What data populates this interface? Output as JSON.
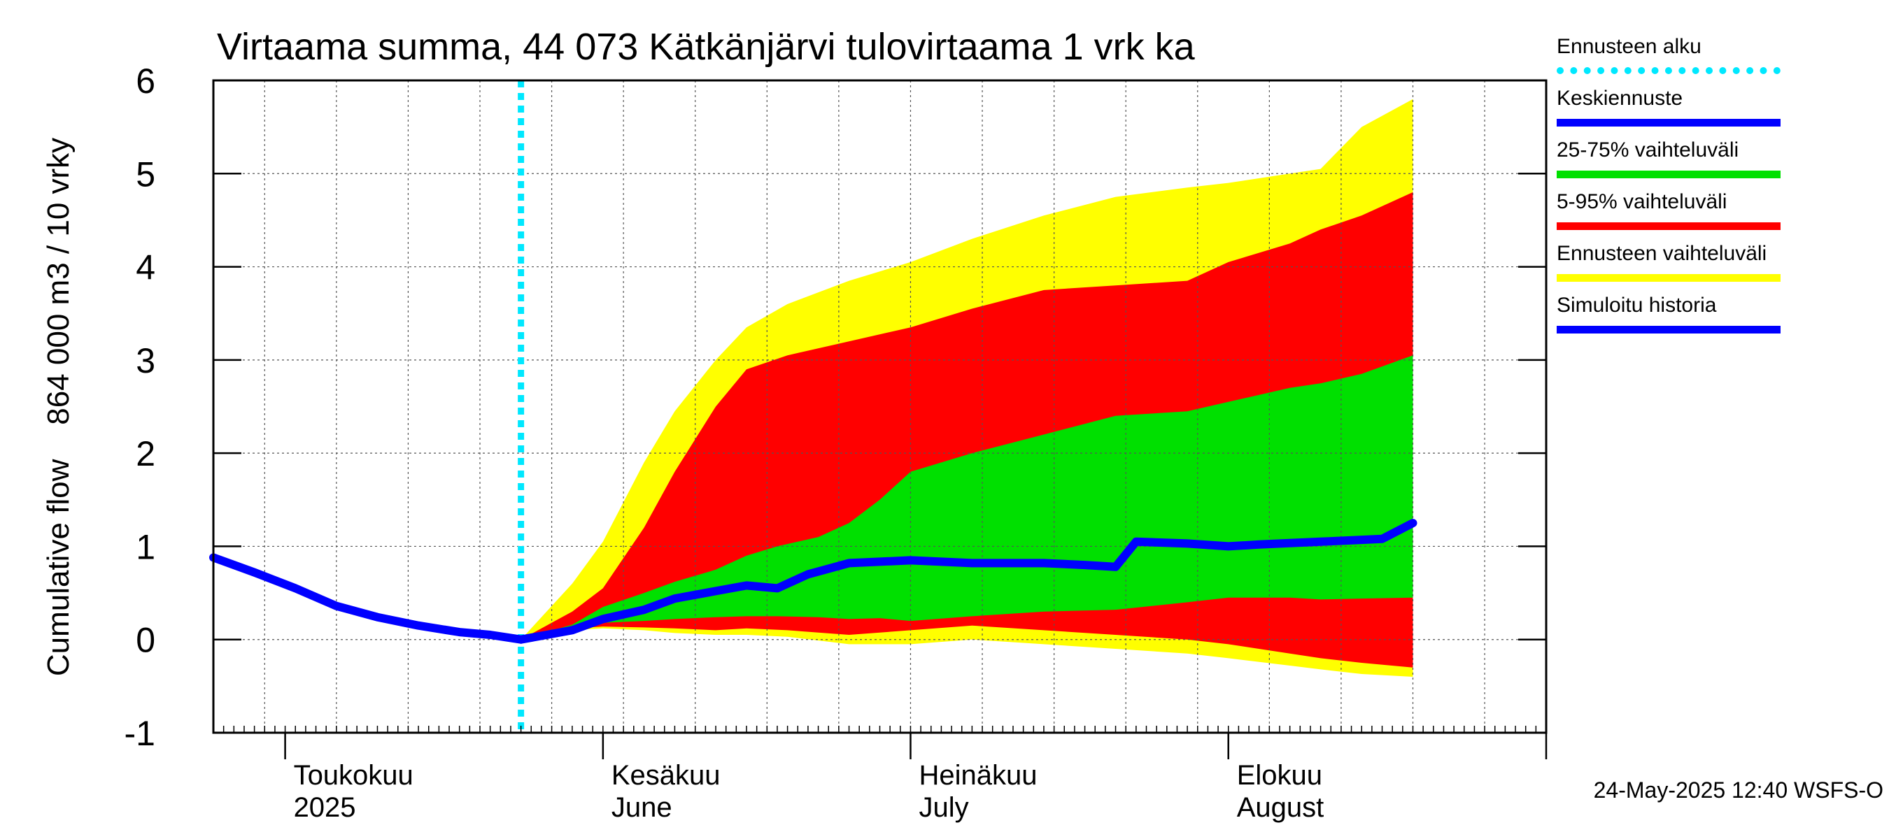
{
  "chart_data": {
    "type": "area",
    "title": "Virtaama summa, 44 073 Kätkänjärvi tulovirtaama 1 vrk ka",
    "ylabel_lines": [
      "Cumulative flow",
      "864 000 m3 / 10 vrky"
    ],
    "ylim": [
      -1,
      6
    ],
    "yticks": [
      "-1",
      "0",
      "1",
      "2",
      "3",
      "4",
      "5",
      "6"
    ],
    "xlim": [
      "2025-04-24",
      "2025-09-01"
    ],
    "month_labels": [
      {
        "date": "2025-05-01",
        "line1": "Toukokuu",
        "line2": "2025"
      },
      {
        "date": "2025-06-01",
        "line1": "Kesäkuu",
        "line2": "June"
      },
      {
        "date": "2025-07-01",
        "line1": "Heinäkuu",
        "line2": "July"
      },
      {
        "date": "2025-08-01",
        "line1": "Elokuu",
        "line2": "August"
      }
    ],
    "forecast_start": "2025-05-24",
    "grid": true,
    "legend_position": "right",
    "legend": [
      {
        "name": "Ennusteen alku",
        "color": "#00e8ff",
        "style": "dotted"
      },
      {
        "name": "Keskiennuste",
        "color": "#0000ff"
      },
      {
        "name": "25-75% vaihteluväli",
        "color": "#00e000"
      },
      {
        "name": "5-95% vaihteluväli",
        "color": "#ff0000"
      },
      {
        "name": "Ennusteen vaihteluväli",
        "color": "#ffff00"
      },
      {
        "name": "Simuloitu historia",
        "color": "#0000ff"
      }
    ],
    "history": {
      "x": [
        "2025-04-24",
        "2025-04-28",
        "2025-05-02",
        "2025-05-06",
        "2025-05-10",
        "2025-05-14",
        "2025-05-18",
        "2025-05-21",
        "2025-05-24"
      ],
      "y": [
        0.88,
        0.72,
        0.55,
        0.36,
        0.24,
        0.15,
        0.08,
        0.05,
        0.0
      ]
    },
    "median": {
      "x": [
        "2025-05-24",
        "2025-05-29",
        "2025-06-01",
        "2025-06-05",
        "2025-06-08",
        "2025-06-12",
        "2025-06-15",
        "2025-06-18",
        "2025-06-21",
        "2025-06-25",
        "2025-07-01",
        "2025-07-07",
        "2025-07-14",
        "2025-07-18",
        "2025-07-21",
        "2025-07-23",
        "2025-07-28",
        "2025-08-01",
        "2025-08-04",
        "2025-08-10",
        "2025-08-14",
        "2025-08-16",
        "2025-08-19"
      ],
      "y": [
        0.0,
        0.1,
        0.22,
        0.32,
        0.44,
        0.52,
        0.58,
        0.55,
        0.7,
        0.82,
        0.85,
        0.82,
        0.82,
        0.8,
        0.78,
        1.05,
        1.03,
        1.0,
        1.02,
        1.05,
        1.07,
        1.08,
        1.25
      ]
    },
    "band_5_95_outer": {
      "x": [
        "2025-05-24",
        "2025-05-29",
        "2025-06-01",
        "2025-06-05",
        "2025-06-08",
        "2025-06-12",
        "2025-06-15",
        "2025-06-19",
        "2025-06-25",
        "2025-07-01",
        "2025-07-07",
        "2025-07-14",
        "2025-07-21",
        "2025-07-28",
        "2025-08-01",
        "2025-08-07",
        "2025-08-10",
        "2025-08-14",
        "2025-08-19"
      ],
      "upper": [
        0.0,
        0.6,
        1.05,
        1.9,
        2.45,
        3.0,
        3.35,
        3.6,
        3.85,
        4.05,
        4.3,
        4.55,
        4.75,
        4.85,
        4.9,
        5.0,
        5.05,
        5.5,
        5.8
      ],
      "lower": [
        0.0,
        0.1,
        0.12,
        0.1,
        0.07,
        0.05,
        0.05,
        0.03,
        -0.05,
        -0.05,
        0.0,
        -0.05,
        -0.1,
        -0.15,
        -0.2,
        -0.28,
        -0.32,
        -0.37,
        -0.4
      ]
    },
    "band_25_75_outer": {
      "x": [
        "2025-05-24",
        "2025-05-29",
        "2025-06-01",
        "2025-06-05",
        "2025-06-08",
        "2025-06-12",
        "2025-06-15",
        "2025-06-19",
        "2025-06-25",
        "2025-07-01",
        "2025-07-07",
        "2025-07-14",
        "2025-07-21",
        "2025-07-28",
        "2025-08-01",
        "2025-08-07",
        "2025-08-10",
        "2025-08-14",
        "2025-08-19"
      ],
      "upper": [
        0.0,
        0.3,
        0.55,
        1.2,
        1.8,
        2.5,
        2.9,
        3.05,
        3.2,
        3.35,
        3.55,
        3.75,
        3.8,
        3.85,
        4.05,
        4.25,
        4.4,
        4.55,
        4.8
      ],
      "lower": [
        0.0,
        0.12,
        0.14,
        0.13,
        0.12,
        0.1,
        0.12,
        0.1,
        0.05,
        0.1,
        0.15,
        0.1,
        0.05,
        0.0,
        -0.05,
        -0.15,
        -0.2,
        -0.25,
        -0.3
      ]
    },
    "band_25_75": {
      "x": [
        "2025-05-24",
        "2025-05-29",
        "2025-06-01",
        "2025-06-05",
        "2025-06-08",
        "2025-06-12",
        "2025-06-15",
        "2025-06-18",
        "2025-06-22",
        "2025-06-25",
        "2025-06-28",
        "2025-07-01",
        "2025-07-07",
        "2025-07-14",
        "2025-07-21",
        "2025-07-28",
        "2025-08-01",
        "2025-08-07",
        "2025-08-10",
        "2025-08-14",
        "2025-08-19"
      ],
      "upper": [
        0.0,
        0.16,
        0.35,
        0.5,
        0.62,
        0.75,
        0.9,
        1.0,
        1.1,
        1.25,
        1.5,
        1.8,
        2.0,
        2.2,
        2.4,
        2.45,
        2.55,
        2.7,
        2.75,
        2.85,
        3.05
      ],
      "lower": [
        0.0,
        0.15,
        0.18,
        0.2,
        0.22,
        0.24,
        0.25,
        0.25,
        0.24,
        0.22,
        0.23,
        0.2,
        0.25,
        0.3,
        0.32,
        0.4,
        0.45,
        0.45,
        0.43,
        0.44,
        0.45
      ]
    }
  },
  "footer": {
    "timestamp": "24-May-2025 12:40 WSFS-O"
  }
}
